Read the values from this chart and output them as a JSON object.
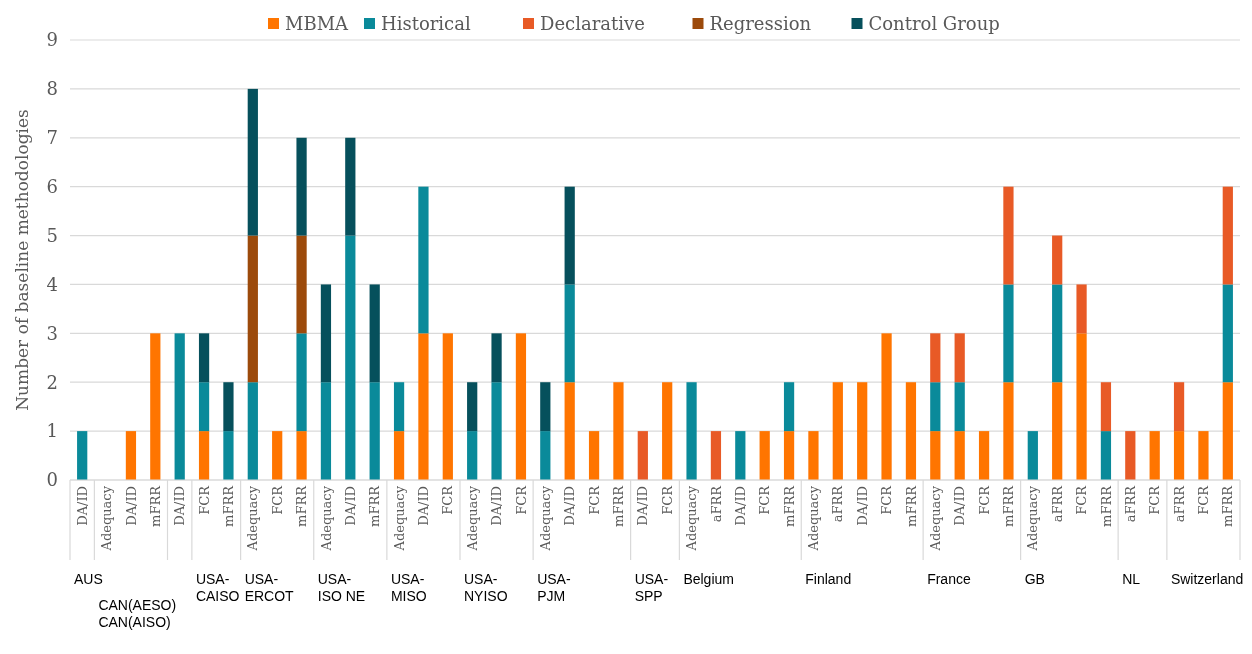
{
  "chart_data": {
    "type": "bar",
    "stacked": true,
    "ylabel": "Number of baseline methodologies",
    "categories": [
      "DA/ID",
      "Adequacy",
      "DA/ID",
      "mFRR",
      "DA/ID",
      "FCR",
      "mFRR",
      "Adequacy",
      "FCR",
      "mFRR",
      "Adequacy",
      "DA/ID",
      "mFRR",
      "Adequacy",
      "DA/ID",
      "FCR",
      "Adequacy",
      "DA/ID",
      "FCR",
      "Adequacy",
      "DA/ID",
      "FCR",
      "mFRR",
      "DA/ID",
      "FCR",
      "Adequacy",
      "aFRR",
      "DA/ID",
      "FCR",
      "mFRR",
      "Adequacy",
      "aFRR",
      "DA/ID",
      "FCR",
      "mFRR",
      "Adequacy",
      "DA/ID",
      "FCR",
      "mFRR",
      "Adequacy",
      "aFRR",
      "FCR",
      "mFRR",
      "aFRR",
      "FCR",
      "aFRR",
      "FCR",
      "mFRR"
    ],
    "series": [
      {
        "name": "MBMA",
        "color": "#ff7500",
        "values": [
          null,
          null,
          1,
          3,
          null,
          1,
          null,
          null,
          1,
          1,
          null,
          null,
          null,
          1,
          3,
          3,
          null,
          null,
          3,
          null,
          2,
          1,
          2,
          null,
          2,
          null,
          null,
          null,
          1,
          1,
          1,
          2,
          2,
          3,
          2,
          1,
          1,
          1,
          2,
          null,
          2,
          3,
          null,
          null,
          1,
          1,
          1,
          2
        ]
      },
      {
        "name": "Historical",
        "color": "#0a8a9a",
        "values": [
          1,
          null,
          null,
          null,
          3,
          1,
          1,
          2,
          null,
          2,
          2,
          5,
          2,
          1,
          3,
          null,
          1,
          2,
          null,
          1,
          2,
          null,
          null,
          null,
          null,
          2,
          null,
          1,
          null,
          1,
          null,
          null,
          null,
          null,
          null,
          1,
          1,
          null,
          2,
          1,
          2,
          null,
          1,
          null,
          null,
          null,
          null,
          2
        ]
      },
      {
        "name": "Declarative",
        "color": "#e85a26",
        "values": [
          null,
          null,
          null,
          null,
          null,
          null,
          null,
          null,
          null,
          null,
          null,
          null,
          null,
          null,
          null,
          null,
          null,
          null,
          null,
          null,
          null,
          null,
          null,
          1,
          null,
          null,
          1,
          null,
          null,
          null,
          null,
          null,
          null,
          null,
          null,
          1,
          1,
          null,
          2,
          null,
          1,
          1,
          1,
          1,
          null,
          1,
          null,
          2
        ]
      },
      {
        "name": "Regression",
        "color": "#9c4a0b",
        "values": [
          null,
          null,
          null,
          null,
          null,
          null,
          null,
          3,
          null,
          2,
          null,
          null,
          null,
          null,
          null,
          null,
          null,
          null,
          null,
          null,
          null,
          null,
          null,
          null,
          null,
          null,
          null,
          null,
          null,
          null,
          null,
          null,
          null,
          null,
          null,
          null,
          null,
          null,
          null,
          null,
          null,
          null,
          null,
          null,
          null,
          null,
          null,
          null
        ]
      },
      {
        "name": "Control Group",
        "color": "#06505c",
        "values": [
          null,
          null,
          null,
          null,
          null,
          1,
          1,
          3,
          null,
          2,
          2,
          2,
          2,
          null,
          null,
          null,
          1,
          1,
          null,
          1,
          2,
          null,
          null,
          null,
          null,
          null,
          null,
          null,
          null,
          null,
          null,
          null,
          null,
          null,
          null,
          null,
          null,
          null,
          null,
          null,
          null,
          null,
          null,
          null,
          null,
          null,
          null,
          null
        ]
      }
    ],
    "ylim": [
      0,
      9
    ],
    "yticks": [
      0,
      1,
      2,
      3,
      4,
      5,
      6,
      7,
      8,
      9
    ],
    "grid": "y",
    "legend": "top",
    "annotations": [
      "AUS",
      "CAN(AESO)",
      "CAN(AISO)",
      "USA-CAISO",
      "USA-ERCOT",
      "USA-ISO NE",
      "USA-MISO",
      "USA-NYISO",
      "USA-PJM",
      "USA-SPP",
      "Belgium",
      "Finland",
      "France",
      "GB",
      "NL",
      "Switzerland"
    ]
  }
}
